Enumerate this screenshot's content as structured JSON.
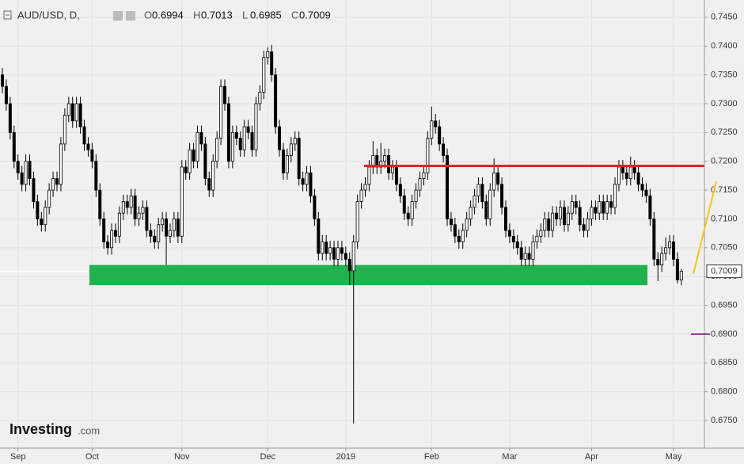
{
  "chart_data": {
    "type": "candlestick",
    "header": {
      "symbol": "AUD/USD, D,",
      "labels": [
        "O",
        "H",
        "L",
        "C"
      ]
    },
    "logo": {
      "name": "Investing",
      "suffix": ".com"
    },
    "ylim": [
      0.6702,
      0.748
    ],
    "yticks": [
      {
        "value": 0.675,
        "label": "0.6750"
      },
      {
        "value": 0.68,
        "label": "0.6800"
      },
      {
        "value": 0.685,
        "label": "0.6850"
      },
      {
        "value": 0.69,
        "label": "0.6900"
      },
      {
        "value": 0.695,
        "label": "0.6950"
      },
      {
        "value": 0.7,
        "label": "0.7000"
      },
      {
        "value": 0.705,
        "label": "0.7050"
      },
      {
        "value": 0.71,
        "label": "0.7100"
      },
      {
        "value": 0.715,
        "label": "0.7150"
      },
      {
        "value": 0.72,
        "label": "0.7200"
      },
      {
        "value": 0.725,
        "label": "0.7250"
      },
      {
        "value": 0.73,
        "label": "0.7300"
      },
      {
        "value": 0.735,
        "label": "0.7350"
      },
      {
        "value": 0.74,
        "label": "0.7400"
      },
      {
        "value": 0.745,
        "label": "0.7450"
      }
    ],
    "grid": true,
    "up_color": "#ffffff",
    "down_color": "#000000",
    "annotations": {
      "zone": {
        "y0": 0.6985,
        "y1": 0.702,
        "color": "#22b14c"
      },
      "resistance": {
        "y": 0.7192,
        "color": "#e02424"
      },
      "projection": {
        "from": 0.7005,
        "to": 0.7165,
        "color": "#f5c518"
      },
      "level": {
        "y": 0.69,
        "color": "#9b3d9b"
      }
    },
    "categories": [
      null,
      null,
      null,
      null,
      "Sep",
      null,
      null,
      null,
      null,
      null,
      null,
      null,
      null,
      null,
      null,
      null,
      null,
      null,
      null,
      null,
      null,
      null,
      null,
      "Oct",
      null,
      null,
      null,
      null,
      null,
      null,
      null,
      null,
      null,
      null,
      null,
      null,
      null,
      null,
      null,
      null,
      null,
      null,
      null,
      null,
      null,
      null,
      "Nov",
      null,
      null,
      null,
      null,
      null,
      null,
      null,
      null,
      null,
      null,
      null,
      null,
      null,
      null,
      null,
      null,
      null,
      null,
      null,
      null,
      null,
      "Dec",
      null,
      null,
      null,
      null,
      null,
      null,
      null,
      null,
      null,
      null,
      null,
      null,
      null,
      null,
      null,
      null,
      null,
      null,
      null,
      "2019",
      null,
      null,
      null,
      null,
      null,
      null,
      null,
      null,
      null,
      null,
      null,
      null,
      null,
      null,
      null,
      null,
      null,
      null,
      null,
      null,
      null,
      "Feb",
      null,
      null,
      null,
      null,
      null,
      null,
      null,
      null,
      null,
      null,
      null,
      null,
      null,
      null,
      null,
      null,
      null,
      null,
      null,
      "Mar",
      null,
      null,
      null,
      null,
      null,
      null,
      null,
      null,
      null,
      null,
      null,
      null,
      null,
      null,
      null,
      null,
      null,
      null,
      null,
      null,
      "Apr",
      null,
      null,
      null,
      null,
      null,
      null,
      null,
      null,
      null,
      null,
      null,
      null,
      null,
      null,
      null,
      null,
      null,
      null,
      null,
      null,
      "May",
      null
    ],
    "candles": [
      [
        0.735,
        0.7362,
        0.7318,
        0.733
      ],
      [
        0.733,
        0.7342,
        0.7288,
        0.73
      ],
      [
        0.73,
        0.7312,
        0.7238,
        0.725
      ],
      [
        0.725,
        0.7262,
        0.7188,
        0.72
      ],
      [
        0.72,
        0.7212,
        0.7168,
        0.718
      ],
      [
        0.718,
        0.7192,
        0.7148,
        0.716
      ],
      [
        0.716,
        0.7212,
        0.7148,
        0.72
      ],
      [
        0.72,
        0.7212,
        0.7158,
        0.717
      ],
      [
        0.717,
        0.7182,
        0.7118,
        0.713
      ],
      [
        0.713,
        0.7142,
        0.7088,
        0.71
      ],
      [
        0.71,
        0.7112,
        0.7078,
        0.709
      ],
      [
        0.709,
        0.7132,
        0.7078,
        0.712
      ],
      [
        0.712,
        0.7162,
        0.7108,
        0.715
      ],
      [
        0.715,
        0.7182,
        0.7138,
        0.717
      ],
      [
        0.717,
        0.7182,
        0.7148,
        0.716
      ],
      [
        0.716,
        0.7242,
        0.7148,
        0.723
      ],
      [
        0.723,
        0.7292,
        0.7218,
        0.728
      ],
      [
        0.728,
        0.7312,
        0.7268,
        0.73
      ],
      [
        0.73,
        0.7312,
        0.7258,
        0.727
      ],
      [
        0.727,
        0.7312,
        0.7258,
        0.73
      ],
      [
        0.73,
        0.7312,
        0.7248,
        0.726
      ],
      [
        0.726,
        0.7272,
        0.7218,
        0.723
      ],
      [
        0.723,
        0.7242,
        0.7208,
        0.722
      ],
      [
        0.722,
        0.7232,
        0.7188,
        0.72
      ],
      [
        0.72,
        0.7212,
        0.7138,
        0.715
      ],
      [
        0.715,
        0.7162,
        0.7088,
        0.71
      ],
      [
        0.71,
        0.7112,
        0.7048,
        0.706
      ],
      [
        0.706,
        0.7072,
        0.7038,
        0.705
      ],
      [
        0.705,
        0.7092,
        0.7038,
        0.708
      ],
      [
        0.708,
        0.7092,
        0.7058,
        0.707
      ],
      [
        0.707,
        0.7122,
        0.7058,
        0.711
      ],
      [
        0.711,
        0.7142,
        0.7098,
        0.713
      ],
      [
        0.713,
        0.7142,
        0.7108,
        0.712
      ],
      [
        0.712,
        0.7152,
        0.7108,
        0.714
      ],
      [
        0.714,
        0.7152,
        0.7088,
        0.71
      ],
      [
        0.71,
        0.7122,
        0.7088,
        0.711
      ],
      [
        0.711,
        0.7132,
        0.7098,
        0.712
      ],
      [
        0.712,
        0.7132,
        0.7068,
        0.708
      ],
      [
        0.708,
        0.7092,
        0.7058,
        0.707
      ],
      [
        0.707,
        0.7082,
        0.7048,
        0.706
      ],
      [
        0.706,
        0.7102,
        0.7048,
        0.709
      ],
      [
        0.709,
        0.7112,
        0.7078,
        0.71
      ],
      [
        0.71,
        0.7112,
        0.702,
        0.707
      ],
      [
        0.707,
        0.7092,
        0.7058,
        0.708
      ],
      [
        0.708,
        0.7112,
        0.7068,
        0.71
      ],
      [
        0.71,
        0.7112,
        0.7058,
        0.707
      ],
      [
        0.707,
        0.7202,
        0.7058,
        0.719
      ],
      [
        0.719,
        0.7202,
        0.7168,
        0.718
      ],
      [
        0.718,
        0.7232,
        0.7168,
        0.722
      ],
      [
        0.722,
        0.7232,
        0.7188,
        0.72
      ],
      [
        0.72,
        0.7262,
        0.7188,
        0.725
      ],
      [
        0.725,
        0.7262,
        0.7218,
        0.723
      ],
      [
        0.723,
        0.7242,
        0.7158,
        0.717
      ],
      [
        0.717,
        0.7182,
        0.7138,
        0.715
      ],
      [
        0.715,
        0.7212,
        0.7138,
        0.72
      ],
      [
        0.72,
        0.7252,
        0.7188,
        0.724
      ],
      [
        0.724,
        0.7342,
        0.7228,
        0.733
      ],
      [
        0.733,
        0.7342,
        0.7288,
        0.73
      ],
      [
        0.73,
        0.7312,
        0.7188,
        0.72
      ],
      [
        0.72,
        0.7262,
        0.7188,
        0.725
      ],
      [
        0.725,
        0.7262,
        0.7228,
        0.724
      ],
      [
        0.724,
        0.7252,
        0.7208,
        0.722
      ],
      [
        0.722,
        0.7272,
        0.7208,
        0.726
      ],
      [
        0.726,
        0.7272,
        0.7238,
        0.725
      ],
      [
        0.725,
        0.7262,
        0.7208,
        0.722
      ],
      [
        0.722,
        0.7312,
        0.7208,
        0.73
      ],
      [
        0.73,
        0.7332,
        0.7288,
        0.732
      ],
      [
        0.732,
        0.7392,
        0.7308,
        0.738
      ],
      [
        0.738,
        0.7398,
        0.7368,
        0.739
      ],
      [
        0.739,
        0.7402,
        0.7338,
        0.735
      ],
      [
        0.735,
        0.7362,
        0.7248,
        0.726
      ],
      [
        0.726,
        0.7272,
        0.7208,
        0.722
      ],
      [
        0.722,
        0.7232,
        0.7168,
        0.718
      ],
      [
        0.718,
        0.7222,
        0.7168,
        0.721
      ],
      [
        0.721,
        0.7242,
        0.7198,
        0.723
      ],
      [
        0.723,
        0.7252,
        0.7218,
        0.724
      ],
      [
        0.724,
        0.7252,
        0.7158,
        0.717
      ],
      [
        0.717,
        0.7182,
        0.7148,
        0.716
      ],
      [
        0.716,
        0.7192,
        0.7148,
        0.718
      ],
      [
        0.718,
        0.7192,
        0.7128,
        0.714
      ],
      [
        0.714,
        0.7152,
        0.7088,
        0.71
      ],
      [
        0.71,
        0.7112,
        0.7028,
        0.704
      ],
      [
        0.704,
        0.7072,
        0.7028,
        0.706
      ],
      [
        0.706,
        0.7072,
        0.7028,
        0.704
      ],
      [
        0.704,
        0.7062,
        0.7028,
        0.705
      ],
      [
        0.705,
        0.7062,
        0.7018,
        0.703
      ],
      [
        0.703,
        0.7062,
        0.7018,
        0.705
      ],
      [
        0.705,
        0.7062,
        0.7028,
        0.704
      ],
      [
        0.704,
        0.7052,
        0.7018,
        0.703
      ],
      [
        0.703,
        0.7042,
        0.6985,
        0.701
      ],
      [
        0.701,
        0.7072,
        0.6745,
        0.706
      ],
      [
        0.706,
        0.7142,
        0.7048,
        0.713
      ],
      [
        0.713,
        0.7162,
        0.7118,
        0.715
      ],
      [
        0.715,
        0.7172,
        0.7138,
        0.716
      ],
      [
        0.716,
        0.7202,
        0.7148,
        0.719
      ],
      [
        0.719,
        0.7235,
        0.7178,
        0.721
      ],
      [
        0.721,
        0.7222,
        0.7178,
        0.719
      ],
      [
        0.719,
        0.7232,
        0.7178,
        0.72
      ],
      [
        0.72,
        0.7222,
        0.7188,
        0.721
      ],
      [
        0.721,
        0.7222,
        0.7168,
        0.718
      ],
      [
        0.718,
        0.7202,
        0.7168,
        0.719
      ],
      [
        0.719,
        0.7202,
        0.7148,
        0.716
      ],
      [
        0.716,
        0.7172,
        0.7128,
        0.714
      ],
      [
        0.714,
        0.7152,
        0.7098,
        0.711
      ],
      [
        0.711,
        0.7122,
        0.7088,
        0.71
      ],
      [
        0.71,
        0.7142,
        0.7088,
        0.713
      ],
      [
        0.713,
        0.7162,
        0.7118,
        0.715
      ],
      [
        0.715,
        0.7182,
        0.7138,
        0.717
      ],
      [
        0.717,
        0.7192,
        0.7158,
        0.718
      ],
      [
        0.718,
        0.7252,
        0.7168,
        0.724
      ],
      [
        0.724,
        0.7295,
        0.7228,
        0.727
      ],
      [
        0.727,
        0.7282,
        0.7248,
        0.726
      ],
      [
        0.726,
        0.7272,
        0.7218,
        0.723
      ],
      [
        0.723,
        0.7242,
        0.7198,
        0.721
      ],
      [
        0.721,
        0.7222,
        0.7088,
        0.71
      ],
      [
        0.71,
        0.7112,
        0.7078,
        0.709
      ],
      [
        0.709,
        0.7102,
        0.7058,
        0.707
      ],
      [
        0.707,
        0.7082,
        0.7048,
        0.706
      ],
      [
        0.706,
        0.7092,
        0.7048,
        0.708
      ],
      [
        0.708,
        0.7112,
        0.7068,
        0.71
      ],
      [
        0.71,
        0.7132,
        0.7088,
        0.712
      ],
      [
        0.712,
        0.7152,
        0.7108,
        0.714
      ],
      [
        0.714,
        0.7172,
        0.7128,
        0.716
      ],
      [
        0.716,
        0.7172,
        0.7118,
        0.713
      ],
      [
        0.713,
        0.7142,
        0.7088,
        0.71
      ],
      [
        0.71,
        0.7162,
        0.7088,
        0.715
      ],
      [
        0.715,
        0.7205,
        0.7138,
        0.718
      ],
      [
        0.718,
        0.7192,
        0.7148,
        0.716
      ],
      [
        0.716,
        0.7172,
        0.7108,
        0.712
      ],
      [
        0.712,
        0.7132,
        0.7068,
        0.708
      ],
      [
        0.708,
        0.7092,
        0.7058,
        0.707
      ],
      [
        0.707,
        0.7082,
        0.7048,
        0.706
      ],
      [
        0.706,
        0.7072,
        0.7038,
        0.705
      ],
      [
        0.705,
        0.7062,
        0.7018,
        0.703
      ],
      [
        0.703,
        0.7052,
        0.7018,
        0.704
      ],
      [
        0.704,
        0.7052,
        0.7018,
        0.703
      ],
      [
        0.703,
        0.7072,
        0.7018,
        0.706
      ],
      [
        0.706,
        0.7082,
        0.7048,
        0.707
      ],
      [
        0.707,
        0.7092,
        0.7058,
        0.708
      ],
      [
        0.708,
        0.7112,
        0.7068,
        0.71
      ],
      [
        0.71,
        0.7112,
        0.7068,
        0.708
      ],
      [
        0.708,
        0.7122,
        0.7068,
        0.711
      ],
      [
        0.711,
        0.7122,
        0.7088,
        0.71
      ],
      [
        0.71,
        0.7132,
        0.7088,
        0.712
      ],
      [
        0.712,
        0.7132,
        0.7078,
        0.709
      ],
      [
        0.709,
        0.7122,
        0.7078,
        0.711
      ],
      [
        0.711,
        0.7142,
        0.7098,
        0.713
      ],
      [
        0.713,
        0.7142,
        0.7108,
        0.712
      ],
      [
        0.712,
        0.7132,
        0.7078,
        0.709
      ],
      [
        0.709,
        0.7102,
        0.7068,
        0.708
      ],
      [
        0.708,
        0.7112,
        0.7068,
        0.71
      ],
      [
        0.71,
        0.7132,
        0.7088,
        0.712
      ],
      [
        0.712,
        0.7132,
        0.7098,
        0.711
      ],
      [
        0.711,
        0.7142,
        0.7098,
        0.713
      ],
      [
        0.713,
        0.7142,
        0.7098,
        0.711
      ],
      [
        0.711,
        0.7142,
        0.7098,
        0.713
      ],
      [
        0.713,
        0.7142,
        0.7108,
        0.712
      ],
      [
        0.712,
        0.7172,
        0.7108,
        0.716
      ],
      [
        0.716,
        0.7202,
        0.7148,
        0.719
      ],
      [
        0.719,
        0.7202,
        0.7168,
        0.718
      ],
      [
        0.718,
        0.7192,
        0.7158,
        0.717
      ],
      [
        0.717,
        0.7208,
        0.7158,
        0.719
      ],
      [
        0.719,
        0.7202,
        0.7168,
        0.718
      ],
      [
        0.718,
        0.7192,
        0.7148,
        0.716
      ],
      [
        0.716,
        0.7172,
        0.7138,
        0.715
      ],
      [
        0.715,
        0.7162,
        0.7128,
        0.714
      ],
      [
        0.714,
        0.7152,
        0.7088,
        0.71
      ],
      [
        0.71,
        0.7112,
        0.7018,
        0.703
      ],
      [
        0.703,
        0.7042,
        0.6992,
        0.702
      ],
      [
        0.702,
        0.7052,
        0.7008,
        0.704
      ],
      [
        0.704,
        0.7068,
        0.7028,
        0.705
      ],
      [
        0.705,
        0.7072,
        0.7038,
        0.706
      ],
      [
        0.706,
        0.7072,
        0.7018,
        0.703
      ],
      [
        0.703,
        0.7042,
        0.6988,
        0.6994
      ],
      [
        0.6994,
        0.7013,
        0.6985,
        0.7009
      ]
    ]
  }
}
